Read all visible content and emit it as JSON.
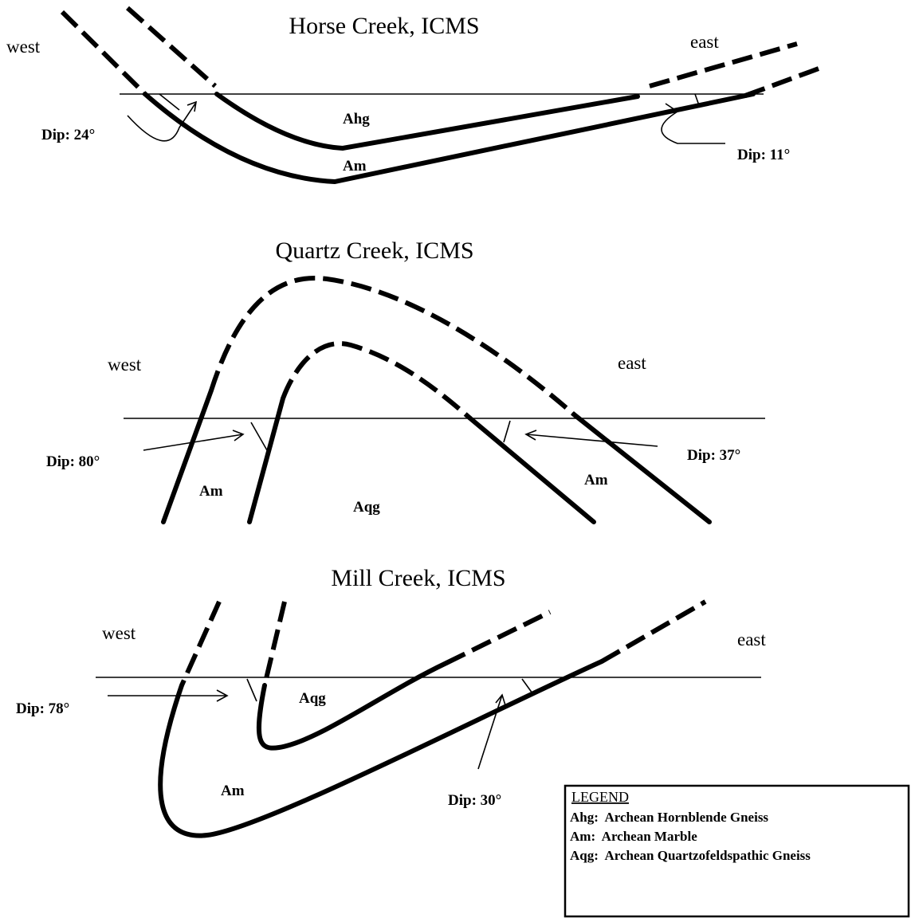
{
  "panels": [
    {
      "title": "Horse Creek, ICMS",
      "west": "west",
      "east": "east",
      "dip_west": "Dip: 24°",
      "dip_east": "Dip: 11°",
      "units": [
        "Ahg",
        "Am"
      ]
    },
    {
      "title": "Quartz Creek, ICMS",
      "west": "west",
      "east": "east",
      "dip_west": "Dip: 80°",
      "dip_east": "Dip: 37°",
      "units": [
        "Am",
        "Aqg",
        "Am"
      ]
    },
    {
      "title": "Mill Creek, ICMS",
      "west": "west",
      "east": "east",
      "dip_west": "Dip: 78°",
      "dip_east": "Dip: 30°",
      "units": [
        "Aqg",
        "Am"
      ]
    }
  ],
  "legend": {
    "title": "LEGEND",
    "entries": [
      "Ahg:  Archean Hornblende Gneiss",
      "Am:  Archean Marble",
      "Aqg:  Archean Quartzofeldspathic Gneiss"
    ]
  }
}
